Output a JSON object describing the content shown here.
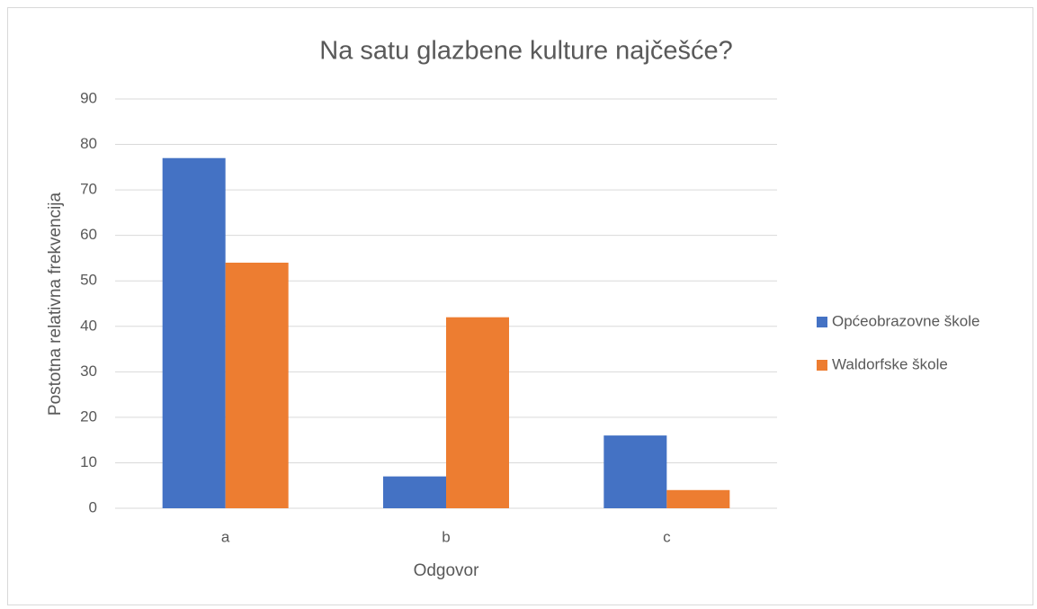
{
  "chart_data": {
    "type": "bar",
    "title": "Na satu glazbene kulture najčešće?",
    "x_label": "Odgovor",
    "y_label": "Postotna relativna frekvencija",
    "categories": [
      "a",
      "b",
      "c"
    ],
    "series": [
      {
        "name": "Općeobrazovne škole",
        "color": "#4472c4",
        "values": [
          77,
          7,
          16
        ]
      },
      {
        "name": "Waldorfske škole",
        "color": "#ed7d31",
        "values": [
          54,
          42,
          4
        ]
      }
    ],
    "ylim": [
      0,
      90
    ],
    "yticks": [
      0,
      10,
      20,
      30,
      40,
      50,
      60,
      70,
      80,
      90
    ],
    "grid": true,
    "legend": "right"
  }
}
